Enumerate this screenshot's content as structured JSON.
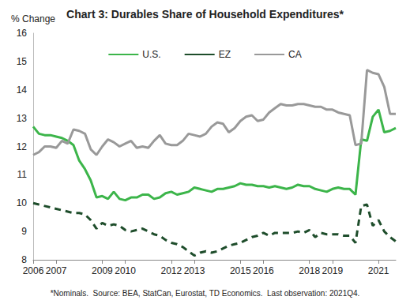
{
  "chart_data": {
    "type": "line",
    "title": "Chart 3: Durables Share of Household Expenditures*",
    "y_label": "% Change",
    "footnote": "*Nominals.  Source: BEA, StatCan, Eurostat, TD Economics.  Last observation: 2021Q4.",
    "categories": [
      "2006",
      null,
      null,
      null,
      "2007",
      null,
      null,
      null,
      null,
      null,
      null,
      null,
      "2009",
      null,
      null,
      null,
      "2010",
      null,
      null,
      null,
      null,
      null,
      null,
      null,
      "2012",
      null,
      null,
      null,
      "2013",
      null,
      null,
      null,
      null,
      null,
      null,
      null,
      "2015",
      null,
      null,
      null,
      "2016",
      null,
      null,
      null,
      null,
      null,
      null,
      null,
      "2018",
      null,
      null,
      null,
      "2019",
      null,
      null,
      null,
      null,
      null,
      null,
      null,
      "2021",
      null,
      null,
      null
    ],
    "series": [
      {
        "name": "U.S.",
        "color": "#3cb54a",
        "line_style": "solid",
        "values": [
          12.7,
          12.45,
          12.4,
          12.4,
          12.35,
          12.3,
          12.2,
          12.05,
          11.5,
          11.2,
          10.8,
          10.2,
          10.25,
          10.15,
          10.4,
          10.15,
          10.1,
          10.2,
          10.2,
          10.3,
          10.3,
          10.15,
          10.2,
          10.35,
          10.4,
          10.3,
          10.35,
          10.4,
          10.55,
          10.5,
          10.45,
          10.4,
          10.5,
          10.5,
          10.55,
          10.6,
          10.7,
          10.65,
          10.65,
          10.6,
          10.6,
          10.55,
          10.6,
          10.55,
          10.5,
          10.55,
          10.65,
          10.6,
          10.6,
          10.5,
          10.45,
          10.4,
          10.5,
          10.55,
          10.5,
          10.5,
          10.3,
          12.25,
          12.2,
          13.05,
          13.3,
          12.5,
          12.55,
          12.65
        ]
      },
      {
        "name": "EZ",
        "color": "#1e4d2b",
        "line_style": "dashed",
        "values": [
          10.0,
          9.95,
          9.9,
          9.85,
          9.8,
          9.75,
          9.7,
          9.65,
          9.65,
          9.6,
          9.4,
          9.1,
          9.3,
          9.2,
          9.25,
          9.2,
          9.05,
          9.0,
          9.05,
          9.1,
          9.0,
          8.9,
          8.85,
          8.7,
          8.6,
          8.55,
          8.45,
          8.3,
          8.15,
          8.25,
          8.3,
          8.25,
          8.3,
          8.4,
          8.5,
          8.55,
          8.6,
          8.7,
          8.8,
          8.85,
          8.95,
          8.85,
          8.95,
          8.95,
          8.95,
          8.95,
          9.0,
          8.95,
          9.05,
          8.8,
          8.95,
          8.9,
          8.9,
          8.9,
          8.85,
          8.85,
          8.6,
          9.9,
          9.95,
          9.2,
          9.4,
          9.0,
          8.8,
          8.65
        ]
      },
      {
        "name": "CA",
        "color": "#999999",
        "line_style": "solid",
        "values": [
          11.7,
          11.8,
          12.0,
          12.0,
          11.95,
          12.2,
          12.1,
          12.6,
          12.55,
          12.45,
          11.9,
          11.7,
          12.0,
          12.25,
          12.15,
          12.0,
          12.1,
          12.2,
          11.95,
          12.0,
          11.95,
          12.2,
          12.4,
          12.1,
          12.05,
          12.05,
          12.2,
          12.45,
          12.4,
          12.35,
          12.45,
          12.7,
          12.85,
          12.8,
          12.5,
          12.65,
          12.9,
          13.05,
          13.1,
          12.9,
          12.95,
          13.2,
          13.35,
          13.5,
          13.45,
          13.45,
          13.5,
          13.5,
          13.45,
          13.4,
          13.4,
          13.3,
          13.3,
          13.2,
          13.15,
          13.1,
          12.05,
          12.1,
          14.7,
          14.6,
          14.55,
          14.1,
          13.15,
          13.15
        ]
      }
    ],
    "ylim": [
      8,
      16
    ],
    "yticks": [
      8,
      9,
      10,
      11,
      12,
      13,
      14,
      15,
      16
    ],
    "grid": false,
    "legend": "top"
  }
}
